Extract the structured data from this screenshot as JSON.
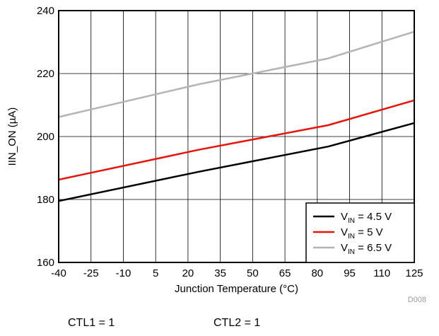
{
  "chart_data": {
    "type": "line",
    "xlabel": "Junction Temperature (°C)",
    "ylabel": "IIN_ON (µA)",
    "xlim": [
      -40,
      125
    ],
    "ylim": [
      160,
      240
    ],
    "x_ticks": [
      -40,
      -25,
      -10,
      5,
      20,
      35,
      50,
      65,
      80,
      95,
      110,
      125
    ],
    "y_ticks": [
      160,
      180,
      200,
      220,
      240
    ],
    "grid": true,
    "legend_position": "bottom-right",
    "series": [
      {
        "name_main": "V",
        "name_sub": "IN",
        "name_rest": " = 4.5 V",
        "color": "#000000",
        "x": [
          -40,
          25,
          85,
          125
        ],
        "y": [
          179.5,
          188.8,
          196.8,
          204.3
        ]
      },
      {
        "name_main": "V",
        "name_sub": "IN",
        "name_rest": " = 5 V",
        "color": "#e8140c",
        "x": [
          -40,
          25,
          85,
          125
        ],
        "y": [
          186.3,
          195.8,
          203.6,
          211.5
        ]
      },
      {
        "name_main": "V",
        "name_sub": "IN",
        "name_rest": " = 6.5 V",
        "color": "#b4b4b4",
        "x": [
          -40,
          25,
          85,
          125
        ],
        "y": [
          206.2,
          216.6,
          224.8,
          233.3
        ]
      }
    ],
    "code": "D008"
  },
  "footnotes": {
    "ctl1": "CTL1 = 1",
    "ctl2": "CTL2 = 1"
  }
}
